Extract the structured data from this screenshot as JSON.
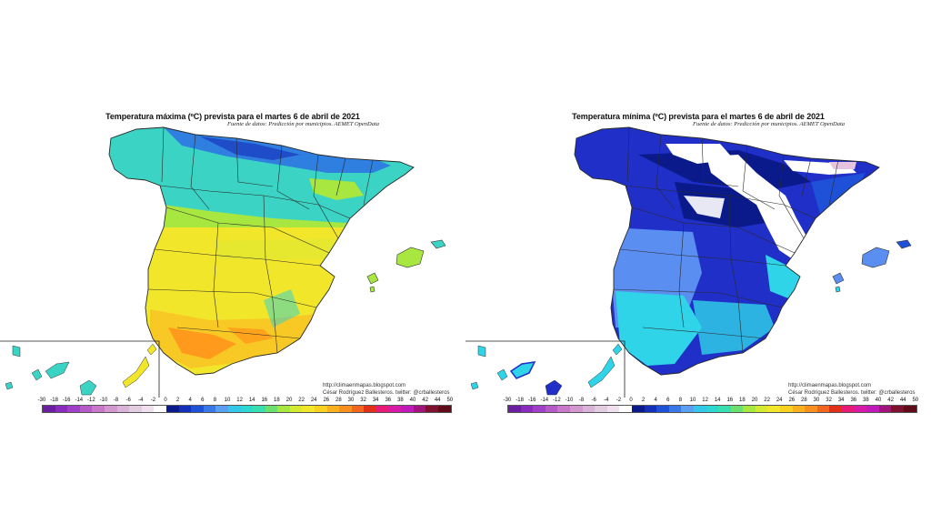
{
  "maps": [
    {
      "id": "max",
      "title": "Temperatura máxima (ºC) prevista para el martes 6 de abril de 2021",
      "source": "Fuente de datos: Predicción por municipios. AEMET OpenData",
      "credit_blog": "http://climaenmapas.blogspot.com",
      "credit_author": "César Rodríguez Ballesteros. twitter: @crballesteros",
      "dominant_colors": [
        "#f2e62a",
        "#a8e640",
        "#3ad3c4",
        "#ff9a1c"
      ]
    },
    {
      "id": "min",
      "title": "Temperatura mínima (ºC) prevista para el martes 6 de abril de 2021",
      "source": "Fuente de datos: Predicción por municipios. AEMET OpenData",
      "credit_blog": "http://climaenmapas.blogspot.com",
      "credit_author": "César Rodríguez Ballesteros. twitter: @crballesteros",
      "dominant_colors": [
        "#1f2fc8",
        "#0a1a8a",
        "#2fd4e8",
        "#ffffff"
      ]
    }
  ],
  "scale": {
    "labels": [
      "-30",
      "-18",
      "-16",
      "-14",
      "-12",
      "-10",
      "-8",
      "-6",
      "-4",
      "-2",
      "0",
      "2",
      "4",
      "6",
      "8",
      "10",
      "12",
      "14",
      "16",
      "18",
      "20",
      "22",
      "24",
      "26",
      "28",
      "30",
      "32",
      "34",
      "36",
      "38",
      "40",
      "42",
      "44",
      "50"
    ],
    "colors": [
      "#6a1fa0",
      "#8a2bbf",
      "#a040c8",
      "#b65ac8",
      "#c878c8",
      "#d498d0",
      "#dab4d8",
      "#e4cce0",
      "#eee0ec",
      "#ffffff",
      "#0a1a8a",
      "#1530b8",
      "#1f50d8",
      "#3a78e8",
      "#5aa0f0",
      "#34c8e8",
      "#2cd8d0",
      "#38e0b0",
      "#6ae070",
      "#a8e640",
      "#d4ea30",
      "#f2e62a",
      "#f8d020",
      "#f8b020",
      "#f89020",
      "#f06820",
      "#e03018",
      "#e81a78",
      "#d81aa8",
      "#c01ab8",
      "#a0147c",
      "#801030",
      "#600a1a"
    ]
  }
}
